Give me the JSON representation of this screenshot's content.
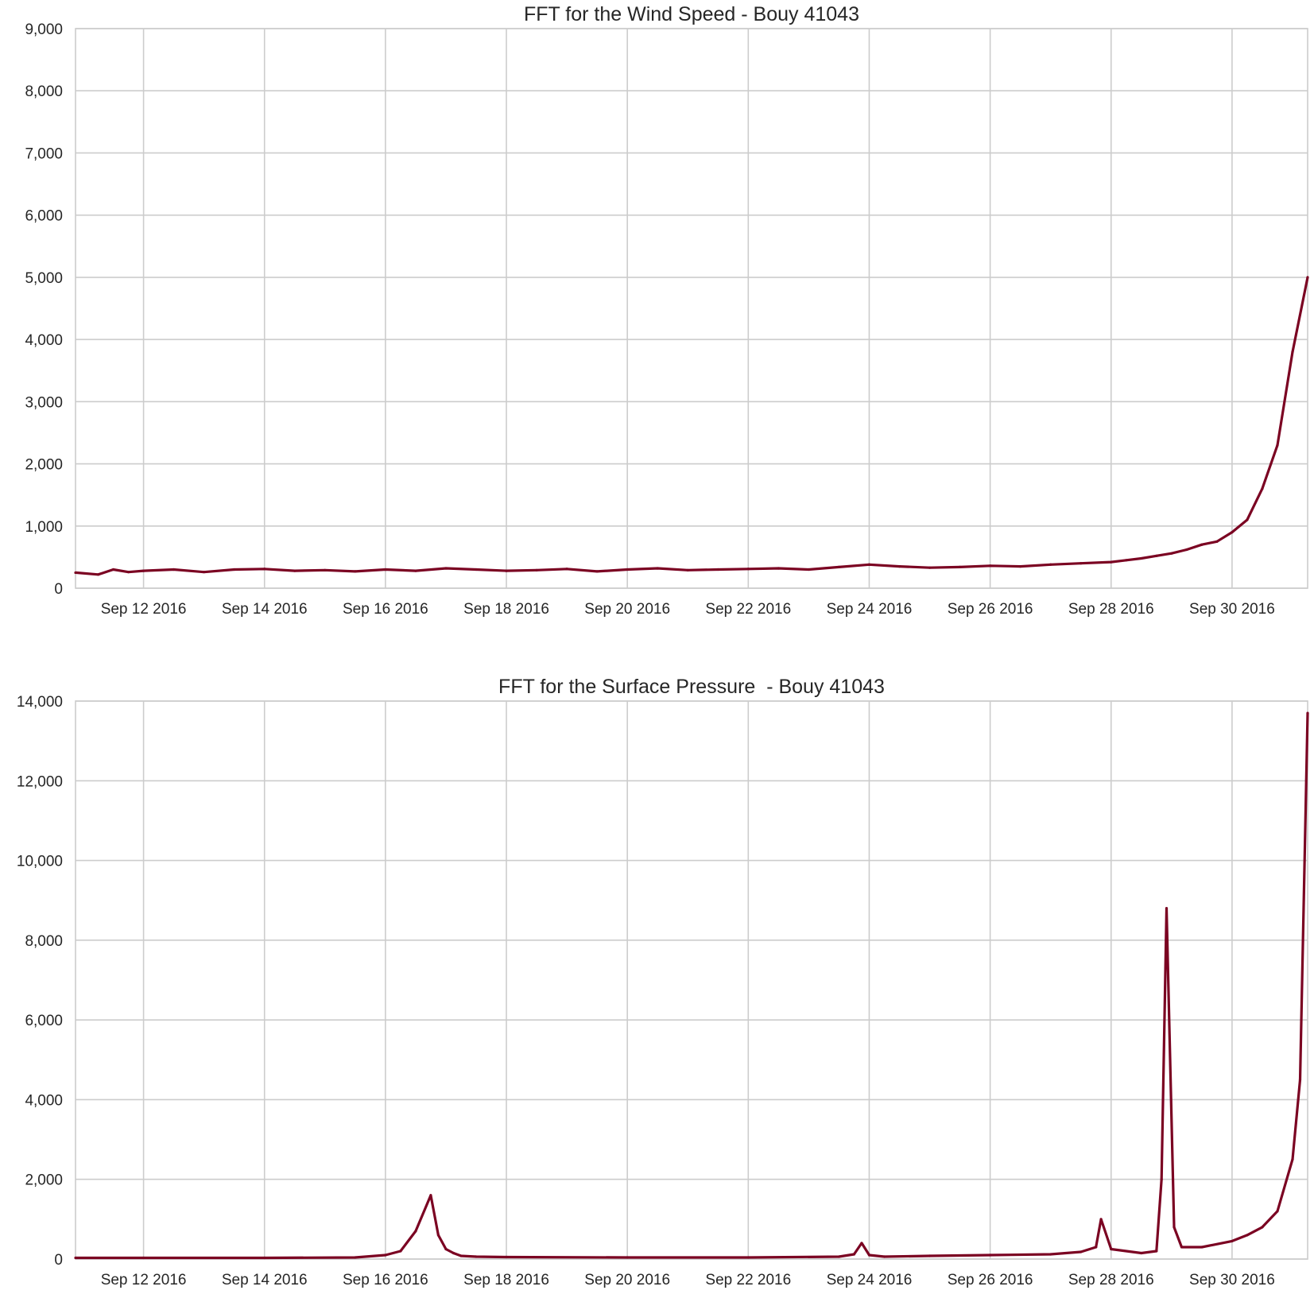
{
  "chart_data": [
    {
      "type": "line",
      "title": "FFT for the Wind Speed - Bouy 41043",
      "xlabel": "",
      "ylabel": "",
      "xlim": [
        "2016-09-10T21:00",
        "2016-10-01T06:00"
      ],
      "ylim": [
        0,
        9000
      ],
      "x_ticks": [
        {
          "date": "2016-09-12",
          "label": "Sep 12 2016"
        },
        {
          "date": "2016-09-14",
          "label": "Sep 14 2016"
        },
        {
          "date": "2016-09-16",
          "label": "Sep 16 2016"
        },
        {
          "date": "2016-09-18",
          "label": "Sep 18 2016"
        },
        {
          "date": "2016-09-20",
          "label": "Sep 20 2016"
        },
        {
          "date": "2016-09-22",
          "label": "Sep 22 2016"
        },
        {
          "date": "2016-09-24",
          "label": "Sep 24 2016"
        },
        {
          "date": "2016-09-26",
          "label": "Sep 26 2016"
        },
        {
          "date": "2016-09-28",
          "label": "Sep 28 2016"
        },
        {
          "date": "2016-09-30",
          "label": "Sep 30 2016"
        }
      ],
      "y_ticks": [
        {
          "value": 0,
          "label": "0"
        },
        {
          "value": 1000,
          "label": "1,000"
        },
        {
          "value": 2000,
          "label": "2,000"
        },
        {
          "value": 3000,
          "label": "3,000"
        },
        {
          "value": 4000,
          "label": "4,000"
        },
        {
          "value": 5000,
          "label": "5,000"
        },
        {
          "value": 6000,
          "label": "6,000"
        },
        {
          "value": 7000,
          "label": "7,000"
        },
        {
          "value": 8000,
          "label": "8,000"
        },
        {
          "value": 9000,
          "label": "9,000"
        }
      ],
      "grid": true,
      "color": "#7b0322",
      "series": [
        {
          "name": "",
          "x": [
            "2016-09-10T21:00",
            "2016-09-11T06:00",
            "2016-09-11T12:00",
            "2016-09-11T18:00",
            "2016-09-12T00:00",
            "2016-09-12T12:00",
            "2016-09-13T00:00",
            "2016-09-13T12:00",
            "2016-09-14T00:00",
            "2016-09-14T12:00",
            "2016-09-15T00:00",
            "2016-09-15T12:00",
            "2016-09-16T00:00",
            "2016-09-16T12:00",
            "2016-09-17T00:00",
            "2016-09-17T12:00",
            "2016-09-18T00:00",
            "2016-09-18T12:00",
            "2016-09-19T00:00",
            "2016-09-19T12:00",
            "2016-09-20T00:00",
            "2016-09-20T12:00",
            "2016-09-21T00:00",
            "2016-09-21T12:00",
            "2016-09-22T00:00",
            "2016-09-22T12:00",
            "2016-09-23T00:00",
            "2016-09-23T12:00",
            "2016-09-24T00:00",
            "2016-09-24T12:00",
            "2016-09-25T00:00",
            "2016-09-25T12:00",
            "2016-09-26T00:00",
            "2016-09-26T12:00",
            "2016-09-27T00:00",
            "2016-09-27T12:00",
            "2016-09-28T00:00",
            "2016-09-28T06:00",
            "2016-09-28T12:00",
            "2016-09-28T18:00",
            "2016-09-29T00:00",
            "2016-09-29T06:00",
            "2016-09-29T12:00",
            "2016-09-29T18:00",
            "2016-09-30T00:00",
            "2016-09-30T06:00",
            "2016-09-30T12:00",
            "2016-09-30T18:00",
            "2016-10-01T00:00",
            "2016-10-01T06:00"
          ],
          "y": [
            250,
            220,
            300,
            260,
            280,
            300,
            260,
            300,
            310,
            280,
            290,
            270,
            300,
            280,
            320,
            300,
            280,
            290,
            310,
            270,
            300,
            320,
            290,
            300,
            310,
            320,
            300,
            340,
            380,
            350,
            330,
            340,
            360,
            350,
            380,
            400,
            420,
            450,
            480,
            520,
            560,
            620,
            700,
            750,
            900,
            1100,
            1600,
            2300,
            3800,
            5000
          ]
        }
      ]
    },
    {
      "type": "line",
      "title": "FFT for the Surface Pressure  - Bouy 41043",
      "xlabel": "",
      "ylabel": "",
      "xlim": [
        "2016-09-10T21:00",
        "2016-10-01T06:00"
      ],
      "ylim": [
        0,
        14000
      ],
      "x_ticks": [
        {
          "date": "2016-09-12",
          "label": "Sep 12 2016"
        },
        {
          "date": "2016-09-14",
          "label": "Sep 14 2016"
        },
        {
          "date": "2016-09-16",
          "label": "Sep 16 2016"
        },
        {
          "date": "2016-09-18",
          "label": "Sep 18 2016"
        },
        {
          "date": "2016-09-20",
          "label": "Sep 20 2016"
        },
        {
          "date": "2016-09-22",
          "label": "Sep 22 2016"
        },
        {
          "date": "2016-09-24",
          "label": "Sep 24 2016"
        },
        {
          "date": "2016-09-26",
          "label": "Sep 26 2016"
        },
        {
          "date": "2016-09-28",
          "label": "Sep 28 2016"
        },
        {
          "date": "2016-09-30",
          "label": "Sep 30 2016"
        }
      ],
      "y_ticks": [
        {
          "value": 0,
          "label": "0"
        },
        {
          "value": 2000,
          "label": "2,000"
        },
        {
          "value": 4000,
          "label": "4,000"
        },
        {
          "value": 6000,
          "label": "6,000"
        },
        {
          "value": 8000,
          "label": "8,000"
        },
        {
          "value": 10000,
          "label": "10,000"
        },
        {
          "value": 12000,
          "label": "12,000"
        },
        {
          "value": 14000,
          "label": "14,000"
        }
      ],
      "grid": true,
      "color": "#7b0322",
      "series": [
        {
          "name": "",
          "x": [
            "2016-09-10T21:00",
            "2016-09-12T00:00",
            "2016-09-14T00:00",
            "2016-09-15T12:00",
            "2016-09-16T00:00",
            "2016-09-16T06:00",
            "2016-09-16T12:00",
            "2016-09-16T18:00",
            "2016-09-16T21:00",
            "2016-09-17T00:00",
            "2016-09-17T03:00",
            "2016-09-17T06:00",
            "2016-09-17T12:00",
            "2016-09-18T00:00",
            "2016-09-20T00:00",
            "2016-09-22T00:00",
            "2016-09-23T12:00",
            "2016-09-23T18:00",
            "2016-09-23T21:00",
            "2016-09-24T00:00",
            "2016-09-24T06:00",
            "2016-09-25T00:00",
            "2016-09-26T00:00",
            "2016-09-27T00:00",
            "2016-09-27T12:00",
            "2016-09-27T18:00",
            "2016-09-27T20:00",
            "2016-09-28T00:00",
            "2016-09-28T12:00",
            "2016-09-28T18:00",
            "2016-09-28T20:00",
            "2016-09-28T22:00",
            "2016-09-29T01:00",
            "2016-09-29T04:00",
            "2016-09-29T12:00",
            "2016-09-30T00:00",
            "2016-09-30T06:00",
            "2016-09-30T12:00",
            "2016-09-30T18:00",
            "2016-10-01T00:00",
            "2016-10-01T03:00",
            "2016-10-01T06:00"
          ],
          "y": [
            30,
            30,
            30,
            40,
            100,
            200,
            700,
            1600,
            600,
            250,
            150,
            80,
            60,
            50,
            40,
            40,
            60,
            120,
            400,
            100,
            60,
            80,
            100,
            120,
            180,
            300,
            1000,
            250,
            150,
            200,
            2000,
            8800,
            800,
            300,
            300,
            450,
            600,
            800,
            1200,
            2500,
            4500,
            13700
          ]
        }
      ]
    }
  ]
}
